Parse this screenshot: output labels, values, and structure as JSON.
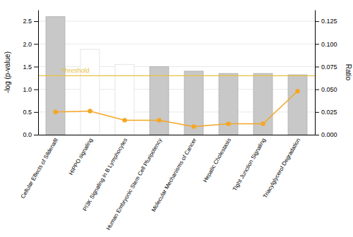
{
  "chart_data": {
    "type": "bar",
    "categories": [
      "Cellular Effects of Sildenafil",
      "HIPPO signaling",
      "PI3K Signaling in B Lymphocytes",
      "Human Embryonic Stem Cell Pluripotency",
      "Molecular Mechanisms of Cancer",
      "Hepatic Cholestasis",
      "Tight Junction Signaling",
      "Triacylglycerol Degradation"
    ],
    "series": [
      {
        "type": "bar",
        "values": [
          2.6,
          1.88,
          1.55,
          1.5,
          1.4,
          1.35,
          1.35,
          1.32
        ],
        "colors": [
          "#c8c8c8",
          "#ffffff",
          "#ffffff",
          "#c8c8c8",
          "#c8c8c8",
          "#c8c8c8",
          "#c8c8c8",
          "#c8c8c8"
        ]
      },
      {
        "type": "line",
        "axis": "y2",
        "values": [
          0.025,
          0.026,
          0.016,
          0.016,
          0.009,
          0.012,
          0.012,
          0.048
        ],
        "color": "#f5a623",
        "marker": "circle"
      }
    ],
    "annotations": [
      {
        "type": "line",
        "y": 1.3,
        "label": "Threshold",
        "color": "#e8c040"
      }
    ],
    "ylabel": "-log (p-value)",
    "y2label": "Ratio",
    "ylim": [
      0,
      2.75
    ],
    "yticks": [
      {
        "value": 0.0,
        "label": "0.0"
      },
      0.5,
      {
        "value": 1.0,
        "label": "1.0"
      },
      1.5,
      {
        "value": 2.0,
        "label": "2.0"
      },
      2.5
    ],
    "y2lim": [
      0,
      0.1375
    ],
    "y2ticks": [
      {
        "value": 0.0,
        "label": "0.000"
      },
      0.025,
      {
        "value": 0.05,
        "label": "0.050"
      },
      0.075,
      {
        "value": 0.1,
        "label": "0.100"
      },
      0.125
    ],
    "grid": true
  }
}
